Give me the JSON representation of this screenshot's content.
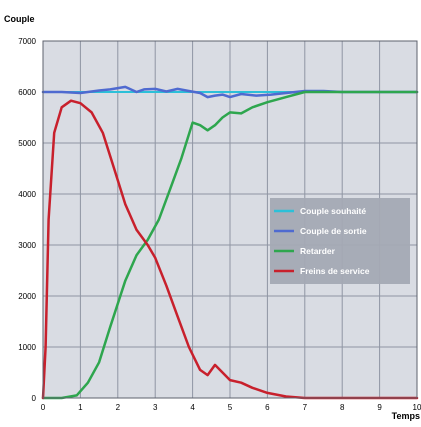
{
  "chart_data": {
    "type": "line",
    "title": "",
    "ylabel": "Couple",
    "xlabel": "Temps",
    "xlim": [
      0,
      10
    ],
    "ylim": [
      0,
      7000
    ],
    "x_ticks": [
      "0",
      "1",
      "2",
      "3",
      "4",
      "5",
      "6",
      "7",
      "8",
      "9",
      "10"
    ],
    "y_ticks": [
      "0",
      "1000",
      "2000",
      "3000",
      "4000",
      "5000",
      "6000",
      "7000"
    ],
    "grid": true,
    "legend_position": "right",
    "colors": {
      "plot_background": "#d9dce3",
      "grid": "#8f95a3",
      "legend_background": "#a4a9b4"
    },
    "series": [
      {
        "name": "Couple souhaité",
        "color": "#2cc0d8",
        "points": [
          [
            0,
            6000
          ],
          [
            1,
            6000
          ],
          [
            2,
            6000
          ],
          [
            3,
            6000
          ],
          [
            4,
            6000
          ],
          [
            5,
            6000
          ],
          [
            6,
            6000
          ],
          [
            7,
            6000
          ],
          [
            8,
            6000
          ],
          [
            9,
            6000
          ],
          [
            10,
            6000
          ]
        ]
      },
      {
        "name": "Couple de sortie",
        "color": "#4f6ad0",
        "points": [
          [
            0,
            6000
          ],
          [
            0.5,
            6000
          ],
          [
            1,
            5980
          ],
          [
            1.5,
            6030
          ],
          [
            1.8,
            6050
          ],
          [
            2.2,
            6100
          ],
          [
            2.5,
            6000
          ],
          [
            2.7,
            6050
          ],
          [
            3,
            6060
          ],
          [
            3.3,
            6010
          ],
          [
            3.6,
            6060
          ],
          [
            3.9,
            6020
          ],
          [
            4.2,
            5980
          ],
          [
            4.4,
            5900
          ],
          [
            4.6,
            5930
          ],
          [
            4.8,
            5950
          ],
          [
            5.0,
            5900
          ],
          [
            5.3,
            5960
          ],
          [
            5.7,
            5930
          ],
          [
            6.1,
            5950
          ],
          [
            6.5,
            5980
          ],
          [
            7,
            6020
          ],
          [
            7.5,
            6020
          ],
          [
            8,
            6000
          ],
          [
            8.5,
            6000
          ],
          [
            9,
            6000
          ],
          [
            10,
            6000
          ]
        ]
      },
      {
        "name": "Retarder",
        "color": "#2ea64e",
        "points": [
          [
            0,
            0
          ],
          [
            0.5,
            0
          ],
          [
            0.9,
            50
          ],
          [
            1.2,
            300
          ],
          [
            1.5,
            700
          ],
          [
            1.8,
            1400
          ],
          [
            2.2,
            2300
          ],
          [
            2.5,
            2800
          ],
          [
            2.8,
            3100
          ],
          [
            3.1,
            3500
          ],
          [
            3.4,
            4100
          ],
          [
            3.7,
            4700
          ],
          [
            4.0,
            5400
          ],
          [
            4.2,
            5350
          ],
          [
            4.4,
            5250
          ],
          [
            4.6,
            5350
          ],
          [
            4.8,
            5500
          ],
          [
            5.0,
            5600
          ],
          [
            5.3,
            5580
          ],
          [
            5.6,
            5700
          ],
          [
            6.0,
            5800
          ],
          [
            6.5,
            5900
          ],
          [
            7.0,
            6000
          ],
          [
            7.5,
            6000
          ],
          [
            8.0,
            6000
          ],
          [
            8.5,
            6000
          ],
          [
            9,
            6000
          ],
          [
            10,
            6000
          ]
        ]
      },
      {
        "name": "Freins de service",
        "color": "#c8202c",
        "points": [
          [
            0,
            0
          ],
          [
            0.07,
            1000
          ],
          [
            0.15,
            3500
          ],
          [
            0.3,
            5200
          ],
          [
            0.5,
            5700
          ],
          [
            0.75,
            5830
          ],
          [
            1.0,
            5780
          ],
          [
            1.3,
            5600
          ],
          [
            1.6,
            5200
          ],
          [
            1.9,
            4500
          ],
          [
            2.2,
            3800
          ],
          [
            2.5,
            3300
          ],
          [
            2.8,
            3000
          ],
          [
            3.0,
            2750
          ],
          [
            3.3,
            2200
          ],
          [
            3.6,
            1600
          ],
          [
            3.9,
            1000
          ],
          [
            4.2,
            550
          ],
          [
            4.4,
            450
          ],
          [
            4.6,
            650
          ],
          [
            4.8,
            500
          ],
          [
            5.0,
            350
          ],
          [
            5.3,
            300
          ],
          [
            5.6,
            200
          ],
          [
            6.0,
            100
          ],
          [
            6.5,
            30
          ],
          [
            7,
            0
          ],
          [
            8,
            0
          ],
          [
            9,
            0
          ],
          [
            10,
            0
          ]
        ]
      }
    ]
  }
}
